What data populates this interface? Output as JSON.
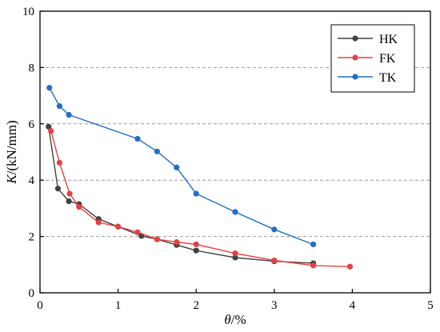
{
  "chart_data": {
    "type": "line",
    "xlabel_sym": "θ",
    "xlabel_unit": "/%",
    "ylabel_sym": "K",
    "ylabel_unit": "/(kN/mm)",
    "xlim": [
      0,
      5
    ],
    "ylim": [
      0,
      10
    ],
    "xticks": [
      0,
      1,
      2,
      3,
      4,
      5
    ],
    "yticks": [
      0,
      2,
      4,
      6,
      8,
      10
    ],
    "grid": "horizontal-dashed",
    "legend_position": "top-right",
    "series": [
      {
        "name": "HK",
        "color": "#404040",
        "x": [
          0.11,
          0.23,
          0.37,
          0.5,
          0.75,
          1.0,
          1.3,
          1.5,
          1.75,
          2.0,
          2.5,
          3.0,
          3.5
        ],
        "y": [
          5.9,
          3.7,
          3.25,
          3.15,
          2.62,
          2.35,
          2.02,
          1.9,
          1.7,
          1.5,
          1.25,
          1.12,
          1.05
        ]
      },
      {
        "name": "FK",
        "color": "#e84040",
        "x": [
          0.14,
          0.25,
          0.38,
          0.5,
          0.75,
          1.0,
          1.25,
          1.5,
          1.75,
          2.0,
          2.5,
          3.0,
          3.5,
          3.97
        ],
        "y": [
          5.75,
          4.62,
          3.52,
          3.05,
          2.5,
          2.35,
          2.15,
          1.9,
          1.8,
          1.72,
          1.4,
          1.15,
          0.97,
          0.93
        ]
      },
      {
        "name": "TK",
        "color": "#1f6fc6",
        "x": [
          0.12,
          0.25,
          0.37,
          1.25,
          1.5,
          1.75,
          2.0,
          2.5,
          3.0,
          3.5
        ],
        "y": [
          7.28,
          6.63,
          6.32,
          5.47,
          5.02,
          4.45,
          3.52,
          2.87,
          2.25,
          1.72
        ]
      }
    ]
  }
}
